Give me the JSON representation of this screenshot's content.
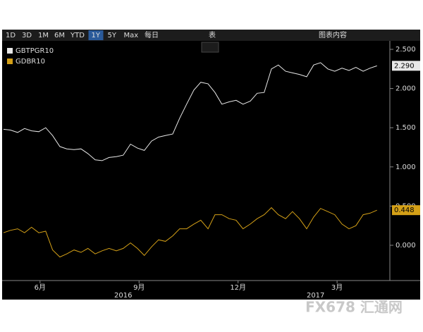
{
  "toolbar": {
    "ranges": [
      "1D",
      "3D",
      "1M",
      "6M",
      "YTD",
      "1Y",
      "5Y",
      "Max"
    ],
    "active_range": 5,
    "frequency": "每日",
    "table": "表",
    "content": "图表内容"
  },
  "watermark": "FX678 汇通网",
  "chart_data": {
    "type": "line",
    "series": [
      {
        "name": "GBTPGR10",
        "color": "#e8e8e8",
        "last_label": "2.290",
        "x": [
          4.89,
          5.1,
          5.32,
          5.53,
          5.74,
          5.96,
          6.17,
          6.38,
          6.6,
          6.81,
          7.03,
          7.24,
          7.45,
          7.67,
          7.88,
          8.09,
          8.31,
          8.52,
          8.74,
          8.95,
          9.16,
          9.38,
          9.59,
          9.8,
          10.02,
          10.23,
          10.44,
          10.66,
          10.87,
          11.09,
          11.3,
          11.51,
          11.73,
          11.94,
          12.15,
          12.37,
          12.58,
          12.79,
          13.01,
          13.22,
          13.44,
          13.65,
          13.86,
          14.08,
          14.29,
          14.5,
          14.72,
          14.93,
          15.15,
          15.36,
          15.57,
          15.79,
          16.0,
          16.21
        ],
        "values": [
          1.48,
          1.47,
          1.44,
          1.49,
          1.46,
          1.45,
          1.5,
          1.4,
          1.26,
          1.23,
          1.22,
          1.23,
          1.17,
          1.09,
          1.08,
          1.12,
          1.13,
          1.15,
          1.29,
          1.24,
          1.21,
          1.33,
          1.38,
          1.4,
          1.42,
          1.62,
          1.8,
          1.98,
          2.08,
          2.06,
          1.95,
          1.8,
          1.83,
          1.85,
          1.8,
          1.84,
          1.94,
          1.95,
          2.25,
          2.3,
          2.22,
          2.2,
          2.18,
          2.15,
          2.3,
          2.33,
          2.25,
          2.22,
          2.26,
          2.23,
          2.27,
          2.22,
          2.26,
          2.29
        ]
      },
      {
        "name": "GDBR10",
        "color": "#d4a017",
        "last_label": "0.448",
        "x": [
          4.89,
          5.1,
          5.32,
          5.53,
          5.74,
          5.96,
          6.17,
          6.38,
          6.6,
          6.81,
          7.03,
          7.24,
          7.45,
          7.67,
          7.88,
          8.09,
          8.31,
          8.52,
          8.74,
          8.95,
          9.16,
          9.38,
          9.59,
          9.8,
          10.02,
          10.23,
          10.44,
          10.66,
          10.87,
          11.09,
          11.3,
          11.51,
          11.73,
          11.94,
          12.15,
          12.37,
          12.58,
          12.79,
          13.01,
          13.22,
          13.44,
          13.65,
          13.86,
          14.08,
          14.29,
          14.5,
          14.72,
          14.93,
          15.15,
          15.36,
          15.57,
          15.79,
          16.0,
          16.21
        ],
        "values": [
          0.16,
          0.19,
          0.21,
          0.16,
          0.23,
          0.16,
          0.18,
          -0.06,
          -0.15,
          -0.11,
          -0.06,
          -0.09,
          -0.04,
          -0.11,
          -0.07,
          -0.04,
          -0.07,
          -0.04,
          0.03,
          -0.04,
          -0.13,
          -0.02,
          0.07,
          0.05,
          0.12,
          0.21,
          0.21,
          0.27,
          0.32,
          0.21,
          0.39,
          0.39,
          0.34,
          0.32,
          0.21,
          0.27,
          0.34,
          0.39,
          0.48,
          0.39,
          0.34,
          0.43,
          0.34,
          0.21,
          0.36,
          0.47,
          0.43,
          0.39,
          0.27,
          0.21,
          0.25,
          0.39,
          0.41,
          0.448
        ]
      }
    ],
    "xlim": [
      4.85,
      16.6
    ],
    "xticks": [
      {
        "value": 6,
        "label": "6月"
      },
      {
        "value": 9,
        "label": "9月"
      },
      {
        "value": 12,
        "label": "12月"
      },
      {
        "value": 15,
        "label": "3月"
      }
    ],
    "x_years": [
      {
        "value": 8.52,
        "label": "2016"
      },
      {
        "value": 14.35,
        "label": "2017"
      }
    ],
    "ylim": [
      -0.45,
      2.59
    ],
    "yticks": [
      {
        "value": 0,
        "label": "0.000"
      },
      {
        "value": 0.5,
        "label": "0.500"
      },
      {
        "value": 1,
        "label": "1.000"
      },
      {
        "value": 1.5,
        "label": "1.500"
      },
      {
        "value": 2,
        "label": "2.000"
      },
      {
        "value": 2.5,
        "label": "2.500"
      }
    ],
    "legend": "top-left"
  }
}
